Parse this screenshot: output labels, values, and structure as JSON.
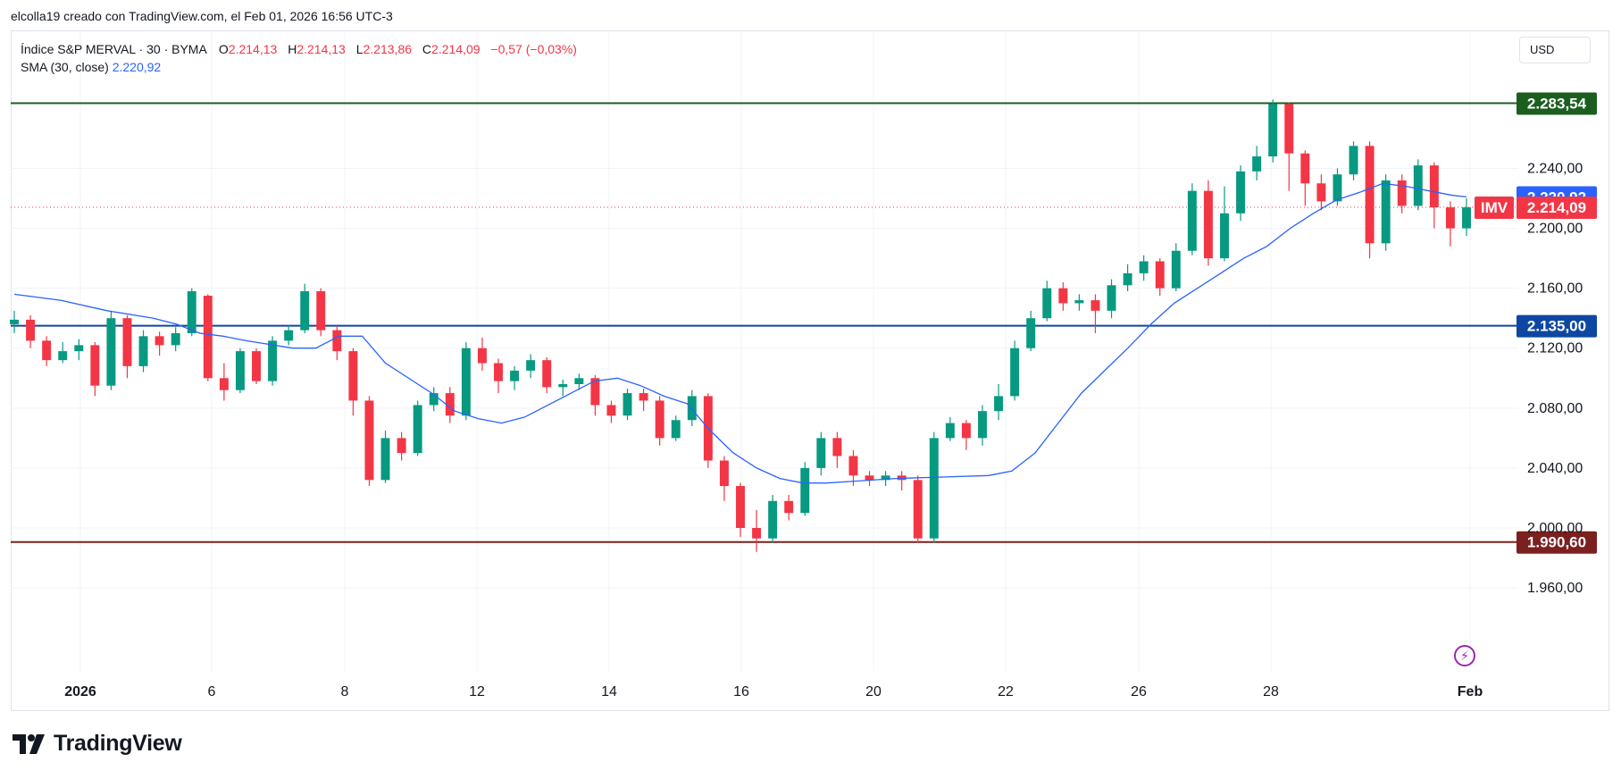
{
  "header": {
    "text": "elcolla19 creado con TradingView.com, el Feb 01, 2026 16:56 UTC-3"
  },
  "legend": {
    "symbol": "Índice S&P MERVAL · 30 · BYMA",
    "o_key": "O",
    "o_val": "2.214,13",
    "h_key": "H",
    "h_val": "2.214,13",
    "l_key": "L",
    "l_val": "2.213,86",
    "c_key": "C",
    "c_val": "2.214,09",
    "change": "−0,57 (−0,03%)",
    "sma_label": "SMA (30, close)",
    "sma_value": "2.220,92"
  },
  "currency": "USD",
  "footer": {
    "brand": "TradingView"
  },
  "icons": {
    "logo": "tradingview-logo-icon",
    "alert": "lightning-alert-icon"
  },
  "colors": {
    "up": "#089981",
    "down": "#f23645",
    "sma": "#2962ff",
    "resistance": "#1b5e20",
    "support_mid": "#0d47a1",
    "support_low": "#7b1f1f"
  },
  "chart_data": {
    "type": "candlestick",
    "y_ticks": [
      1960,
      2000,
      2040,
      2080,
      2120,
      2160,
      2200,
      2240
    ],
    "y_tick_labels": [
      "1.960,00",
      "2.000,00",
      "2.040,00",
      "2.080,00",
      "2.120,00",
      "2.160,00",
      "2.200,00",
      "2.240,00"
    ],
    "ylim": [
      1950,
      2290
    ],
    "x_ticks": [
      "2026",
      "6",
      "8",
      "12",
      "14",
      "16",
      "20",
      "22",
      "26",
      "28",
      "Feb"
    ],
    "x_tick_days": [
      2,
      6,
      8,
      12,
      14,
      16,
      20,
      22,
      26,
      28,
      32
    ],
    "levels": [
      {
        "value": 2283.54,
        "label": "2.283,54",
        "color": "#1b5e20"
      },
      {
        "value": 2135.0,
        "label": "2.135,00",
        "color": "#0d47a1"
      },
      {
        "value": 1990.6,
        "label": "1.990,60",
        "color": "#7b1f1f"
      }
    ],
    "current": {
      "value": 2214.09,
      "label": "2.214,09",
      "tag": "IMV",
      "color": "#f23645"
    },
    "sma": {
      "name": "SMA (30, close)",
      "value": 2220.92,
      "label": "2.220,92",
      "color": "#2962ff",
      "points": [
        [
          0,
          2156
        ],
        [
          1,
          2152
        ],
        [
          2,
          2145
        ],
        [
          3,
          2140
        ],
        [
          3.5,
          2136
        ],
        [
          4,
          2130
        ],
        [
          4.5,
          2128
        ],
        [
          5,
          2125
        ],
        [
          6,
          2120
        ],
        [
          6.5,
          2120
        ],
        [
          7,
          2128
        ],
        [
          7.5,
          2128
        ],
        [
          8,
          2110
        ],
        [
          9,
          2090
        ],
        [
          9.5,
          2078
        ],
        [
          10,
          2073
        ],
        [
          10.5,
          2070
        ],
        [
          11,
          2074
        ],
        [
          12,
          2090
        ],
        [
          12.5,
          2098
        ],
        [
          13,
          2100
        ],
        [
          13.5,
          2095
        ],
        [
          14,
          2088
        ],
        [
          14.5,
          2083
        ],
        [
          15,
          2065
        ],
        [
          15.5,
          2050
        ],
        [
          16,
          2040
        ],
        [
          16.5,
          2033
        ],
        [
          17,
          2030
        ],
        [
          17.5,
          2030
        ],
        [
          18,
          2031
        ],
        [
          19,
          2033
        ],
        [
          20,
          2034
        ],
        [
          21,
          2035
        ],
        [
          21.5,
          2038
        ],
        [
          22,
          2050
        ],
        [
          22.5,
          2070
        ],
        [
          23,
          2090
        ],
        [
          23.5,
          2105
        ],
        [
          24,
          2120
        ],
        [
          24.5,
          2136
        ],
        [
          25,
          2150
        ],
        [
          25.5,
          2160
        ],
        [
          26,
          2170
        ],
        [
          26.5,
          2180
        ],
        [
          27,
          2188
        ],
        [
          27.5,
          2200
        ],
        [
          28,
          2210
        ],
        [
          28.5,
          2219
        ],
        [
          29,
          2224
        ],
        [
          29.5,
          2230
        ],
        [
          30,
          2228
        ],
        [
          30.5,
          2225
        ],
        [
          31,
          2222
        ],
        [
          31.3,
          2221
        ]
      ]
    },
    "candles": [
      [
        2136,
        2139,
        2130,
        2145
      ],
      [
        2139,
        2125,
        2120,
        2142
      ],
      [
        2125,
        2112,
        2108,
        2128
      ],
      [
        2112,
        2118,
        2110,
        2124
      ],
      [
        2118,
        2122,
        2112,
        2126
      ],
      [
        2122,
        2095,
        2088,
        2124
      ],
      [
        2095,
        2140,
        2092,
        2145
      ],
      [
        2140,
        2108,
        2100,
        2142
      ],
      [
        2108,
        2128,
        2104,
        2132
      ],
      [
        2128,
        2122,
        2115,
        2131
      ],
      [
        2122,
        2130,
        2118,
        2134
      ],
      [
        2130,
        2158,
        2128,
        2160
      ],
      [
        2155,
        2100,
        2098,
        2156
      ],
      [
        2100,
        2092,
        2085,
        2110
      ],
      [
        2092,
        2118,
        2090,
        2120
      ],
      [
        2118,
        2098,
        2096,
        2120
      ],
      [
        2098,
        2125,
        2095,
        2128
      ],
      [
        2125,
        2132,
        2122,
        2135
      ],
      [
        2132,
        2158,
        2130,
        2163
      ],
      [
        2158,
        2132,
        2128,
        2160
      ],
      [
        2132,
        2118,
        2112,
        2135
      ],
      [
        2118,
        2085,
        2075,
        2120
      ],
      [
        2085,
        2032,
        2028,
        2088
      ],
      [
        2032,
        2060,
        2030,
        2065
      ],
      [
        2060,
        2050,
        2045,
        2064
      ],
      [
        2050,
        2082,
        2048,
        2085
      ],
      [
        2082,
        2090,
        2078,
        2094
      ],
      [
        2090,
        2075,
        2070,
        2094
      ],
      [
        2075,
        2120,
        2072,
        2124
      ],
      [
        2120,
        2110,
        2105,
        2127
      ],
      [
        2110,
        2098,
        2090,
        2113
      ],
      [
        2098,
        2105,
        2092,
        2108
      ],
      [
        2105,
        2112,
        2100,
        2116
      ],
      [
        2112,
        2094,
        2090,
        2114
      ],
      [
        2094,
        2096,
        2088,
        2099
      ],
      [
        2096,
        2100,
        2092,
        2103
      ],
      [
        2100,
        2082,
        2075,
        2102
      ],
      [
        2082,
        2075,
        2070,
        2085
      ],
      [
        2075,
        2090,
        2072,
        2093
      ],
      [
        2090,
        2085,
        2078,
        2093
      ],
      [
        2085,
        2060,
        2055,
        2088
      ],
      [
        2060,
        2072,
        2058,
        2075
      ],
      [
        2072,
        2088,
        2068,
        2092
      ],
      [
        2088,
        2045,
        2040,
        2090
      ],
      [
        2045,
        2028,
        2018,
        2048
      ],
      [
        2028,
        2000,
        1994,
        2030
      ],
      [
        2000,
        1993,
        1984,
        2012
      ],
      [
        1993,
        2018,
        1990,
        2022
      ],
      [
        2018,
        2010,
        2005,
        2022
      ],
      [
        2010,
        2040,
        2008,
        2044
      ],
      [
        2040,
        2060,
        2035,
        2064
      ],
      [
        2060,
        2048,
        2040,
        2064
      ],
      [
        2048,
        2035,
        2028,
        2052
      ],
      [
        2035,
        2032,
        2028,
        2038
      ],
      [
        2032,
        2035,
        2028,
        2038
      ],
      [
        2035,
        2032,
        2025,
        2038
      ],
      [
        2032,
        1993,
        1990,
        2035
      ],
      [
        1993,
        2060,
        1990,
        2064
      ],
      [
        2060,
        2070,
        2058,
        2074
      ],
      [
        2070,
        2060,
        2052,
        2072
      ],
      [
        2060,
        2078,
        2055,
        2082
      ],
      [
        2078,
        2088,
        2072,
        2096
      ],
      [
        2088,
        2120,
        2085,
        2125
      ],
      [
        2120,
        2140,
        2118,
        2145
      ],
      [
        2140,
        2160,
        2138,
        2165
      ],
      [
        2160,
        2150,
        2145,
        2164
      ],
      [
        2150,
        2152,
        2145,
        2156
      ],
      [
        2152,
        2145,
        2130,
        2156
      ],
      [
        2145,
        2162,
        2140,
        2166
      ],
      [
        2162,
        2170,
        2158,
        2176
      ],
      [
        2170,
        2178,
        2165,
        2182
      ],
      [
        2178,
        2160,
        2155,
        2180
      ],
      [
        2160,
        2185,
        2158,
        2190
      ],
      [
        2185,
        2225,
        2182,
        2230
      ],
      [
        2225,
        2180,
        2175,
        2232
      ],
      [
        2180,
        2210,
        2178,
        2228
      ],
      [
        2210,
        2238,
        2205,
        2242
      ],
      [
        2238,
        2248,
        2232,
        2255
      ],
      [
        2248,
        2283,
        2244,
        2286
      ],
      [
        2283,
        2250,
        2225,
        2284
      ],
      [
        2250,
        2230,
        2215,
        2252
      ],
      [
        2230,
        2218,
        2212,
        2236
      ],
      [
        2218,
        2236,
        2215,
        2240
      ],
      [
        2236,
        2255,
        2232,
        2258
      ],
      [
        2255,
        2190,
        2180,
        2258
      ],
      [
        2190,
        2232,
        2185,
        2236
      ],
      [
        2232,
        2215,
        2210,
        2236
      ],
      [
        2215,
        2242,
        2212,
        2246
      ],
      [
        2242,
        2214,
        2200,
        2244
      ],
      [
        2214,
        2200,
        2188,
        2218
      ],
      [
        2200,
        2214,
        2195,
        2220
      ]
    ]
  }
}
